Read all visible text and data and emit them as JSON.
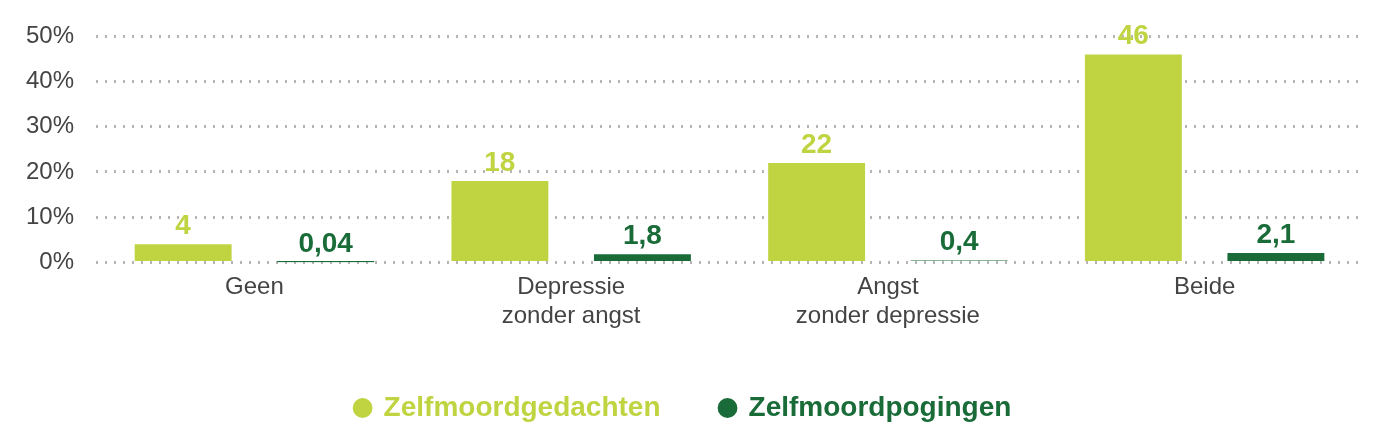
{
  "chart_data": {
    "type": "bar",
    "categories": [
      "Geen",
      "Depressie zonder angst",
      "Angst zonder depressie",
      "Beide"
    ],
    "series": [
      {
        "name": "Zelfmoordgedachten",
        "color": "#c0d442",
        "values": [
          4,
          18,
          22,
          46
        ],
        "value_labels": [
          "4",
          "18",
          "22",
          "46"
        ]
      },
      {
        "name": "Zelfmoordpogingen",
        "color": "#196b38",
        "values": [
          0.04,
          1.8,
          0.4,
          2.1
        ],
        "value_labels": [
          "0,04",
          "1,8",
          "0,4",
          "2,1"
        ]
      }
    ],
    "ylim": [
      0,
      50
    ],
    "yticks": [
      {
        "value": 0,
        "label": "0%"
      },
      {
        "value": 10,
        "label": "10%"
      },
      {
        "value": 20,
        "label": "20%"
      },
      {
        "value": 30,
        "label": "30%"
      },
      {
        "value": 40,
        "label": "40%"
      },
      {
        "value": 50,
        "label": "50%"
      }
    ],
    "grid": "y",
    "legend": "bottom",
    "marker": "circle"
  }
}
